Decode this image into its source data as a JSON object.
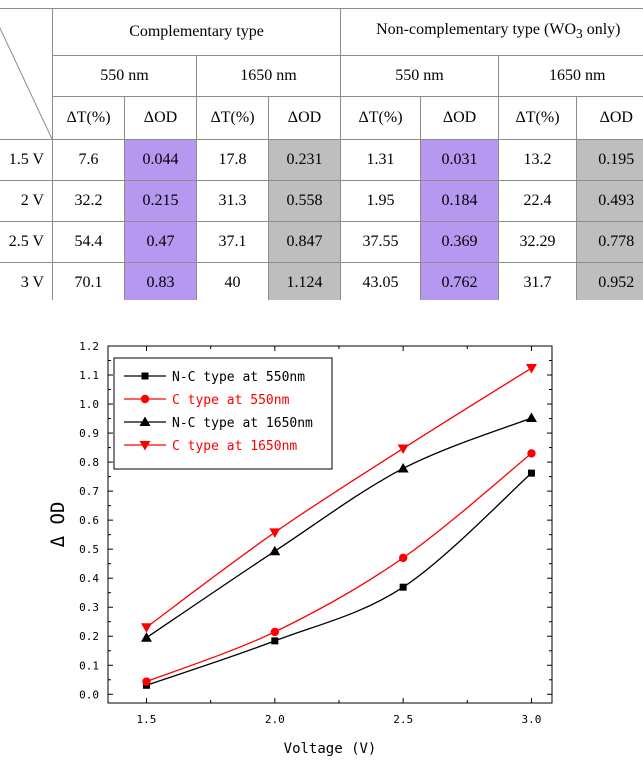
{
  "table": {
    "groups": [
      "Complementary type",
      "Non-complementary type (WO",
      "3",
      " only)"
    ],
    "wavelengths": [
      "550 nm",
      "1650 nm",
      "550 nm",
      "1650 nm"
    ],
    "metrics": [
      "ΔT(%)",
      "ΔOD",
      "ΔT(%)",
      "ΔOD",
      "ΔT(%)",
      "ΔOD",
      "ΔT(%)",
      "ΔOD"
    ],
    "rows": [
      {
        "voltage": "1.5 V",
        "cells": [
          "7.6",
          "0.044",
          "17.8",
          "0.231",
          "1.31",
          "0.031",
          "13.2",
          "0.195"
        ]
      },
      {
        "voltage": "2 V",
        "cells": [
          "32.2",
          "0.215",
          "31.3",
          "0.558",
          "1.95",
          "0.184",
          "22.4",
          "0.493"
        ]
      },
      {
        "voltage": "2.5 V",
        "cells": [
          "54.4",
          "0.47",
          "37.1",
          "0.847",
          "37.55",
          "0.369",
          "32.29",
          "0.778"
        ]
      },
      {
        "voltage": "3 V",
        "cells": [
          "70.1",
          "0.83",
          "40",
          "1.124",
          "43.05",
          "0.762",
          "31.7",
          "0.952"
        ]
      }
    ],
    "highlight_colors": {
      "purple": "#b798f1",
      "gray": "#bebebe"
    }
  },
  "chart_data": {
    "type": "line",
    "xlabel": "Voltage (V)",
    "ylabel": "Δ OD",
    "xlim": [
      1.35,
      3.08
    ],
    "ylim": [
      -0.03,
      1.2
    ],
    "xticks": [
      "1.5",
      "2.0",
      "2.5",
      "3.0"
    ],
    "xtick_values": [
      1.5,
      2.0,
      2.5,
      3.0
    ],
    "yticks": [
      "0.0",
      "0.1",
      "0.2",
      "0.3",
      "0.4",
      "0.5",
      "0.6",
      "0.7",
      "0.8",
      "0.9",
      "1.0",
      "1.1",
      "1.2"
    ],
    "ytick_values": [
      0.0,
      0.1,
      0.2,
      0.3,
      0.4,
      0.5,
      0.6,
      0.7,
      0.8,
      0.9,
      1.0,
      1.1,
      1.2
    ],
    "grid": false,
    "legend_position": "top-left",
    "x": [
      1.5,
      2.0,
      2.5,
      3.0
    ],
    "series": [
      {
        "name": "N-C type at 550nm",
        "values": [
          0.031,
          0.184,
          0.369,
          0.762
        ],
        "color": "#000000",
        "marker": "square"
      },
      {
        "name": "C type at 550nm",
        "values": [
          0.044,
          0.215,
          0.47,
          0.83
        ],
        "color": "#ff0000",
        "marker": "circle"
      },
      {
        "name": "N-C type at 1650nm",
        "values": [
          0.195,
          0.493,
          0.778,
          0.952
        ],
        "color": "#000000",
        "marker": "triangle-up"
      },
      {
        "name": "C type at 1650nm",
        "values": [
          0.231,
          0.558,
          0.847,
          1.124
        ],
        "color": "#ff0000",
        "marker": "triangle-down"
      }
    ]
  }
}
